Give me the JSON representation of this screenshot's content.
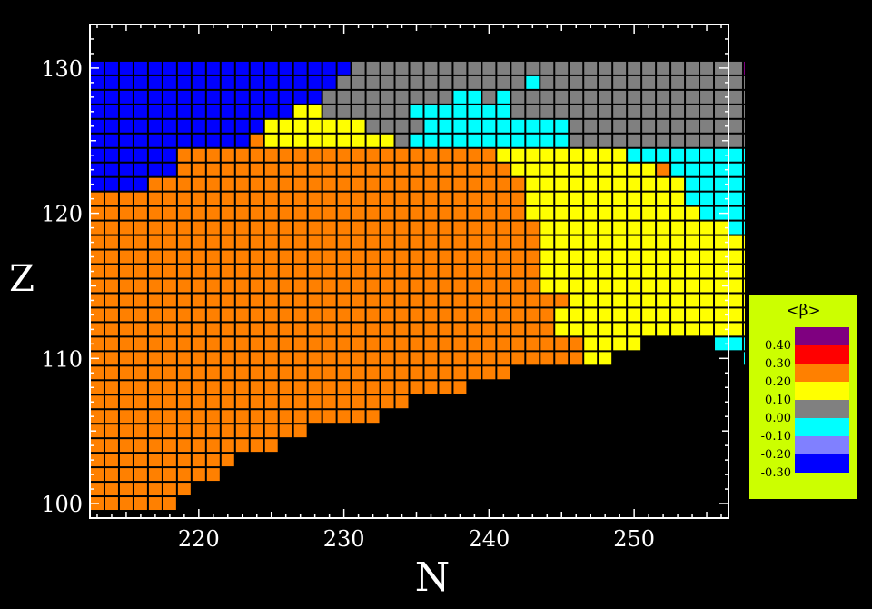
{
  "chart_data": {
    "type": "heatmap",
    "title": "",
    "xlabel": "N",
    "ylabel": "Z",
    "xlim": [
      212.5,
      256.5
    ],
    "ylim": [
      99,
      133
    ],
    "x_ticks": [
      "220",
      "230",
      "240",
      "250"
    ],
    "y_ticks": [
      "100",
      "110",
      "120",
      "130"
    ],
    "value_colors": {
      "0.40": "#7f0080",
      "0.30": "#ff0000",
      "0.20": "#ff8000",
      "0.10": "#ffff00",
      "0.00": "#808080",
      "-0.10": "#00ffff",
      "-0.20": "#8080ff",
      "-0.30": "#0000ff"
    },
    "rows": [
      {
        "z": 100,
        "n_start": 213,
        "vals": "OOOOOO"
      },
      {
        "z": 101,
        "n_start": 213,
        "vals": "OOOOOOO"
      },
      {
        "z": 102,
        "n_start": 213,
        "vals": "OOOOOOOOO"
      },
      {
        "z": 103,
        "n_start": 213,
        "vals": "OOOOOOOOOO"
      },
      {
        "z": 104,
        "n_start": 213,
        "vals": "OOOOOOOOOOOOO"
      },
      {
        "z": 105,
        "n_start": 213,
        "vals": "OOOOOOOOOOOOOOO"
      },
      {
        "z": 106,
        "n_start": 213,
        "vals": "OOOOOOOOOOOOOOOOOOOO"
      },
      {
        "z": 107,
        "n_start": 213,
        "vals": "OOOOOOOOOOOOOOOOOOOOOO"
      },
      {
        "z": 108,
        "n_start": 213,
        "vals": "OOOOOOOOOOOOOOOOOOOOOOOOOO"
      },
      {
        "z": 109,
        "n_start": 213,
        "vals": "OOOOOOOOOOOOOOOOOOOOOOOOOOOOO"
      },
      {
        "z": 110,
        "n_start": 213,
        "vals": "OOOOOOOOOOOOOOOOOOOOOOOOOOOOOOOOOOYY.........CC......GG"
      },
      {
        "z": 111,
        "n_start": 213,
        "vals": "OOOOOOOOOOOOOOOOOOOOOOOOOOOOOOOOOOYYYY.....CCCC....GG"
      },
      {
        "z": 112,
        "n_start": 213,
        "vals": "OOOOOOOOOOOOOOOOOOOOOOOOOOOOOOOOYYYYYYYYYYYYYYYCCCCGGG..GG"
      },
      {
        "z": 113,
        "n_start": 213,
        "vals": "OOOOOOOOOOOOOOOOOOOOOOOOOOOOOOOOYYYYYYYYYYYYYYYYCYCCGGGGGGGG"
      },
      {
        "z": 114,
        "n_start": 213,
        "vals": "OOOOOOOOOOOOOOOOOOOOOOOOOOOOOOOOOYYYYYYYYYYYYYYYYCCCCGGGGGGGGGG"
      },
      {
        "z": 115,
        "n_start": 213,
        "vals": "OOOOOOOOOOOOOOOOOOOOOOOOOOOOOOOYYYYYYYYYYYYYYYYYYYCCCCGGGGGGGGGG"
      },
      {
        "z": 116,
        "n_start": 213,
        "vals": "OOOOOOOOOOOOOOOOOOOOOOOOOOOOOOOYYYYYYYYYYYYYYYYYYYCCCCGGGGGGGGGG"
      },
      {
        "z": 117,
        "n_start": 213,
        "vals": "OOOOOOOOOOOOOOOOOOOOOOOOOOOOOOOYYYYYYYYYYYYYYYYYYYCCCGGGGGGGGGGG"
      },
      {
        "z": 118,
        "n_start": 213,
        "vals": "OOOOOOOOOOOOOOOOOOOOOOOOOOOOOOOYYYYYYYYYYYYYYYYYYYCCCCCCCGGGGGGGGGGGGG"
      },
      {
        "z": 119,
        "n_start": 213,
        "vals": "OOOOOOOOOOOOOOOOOOOOOOOOOOOOOOOYYYYYYYYYYYYYCCCCCCCCCCCCCGGGGGGGGGGGGG"
      },
      {
        "z": 120,
        "n_start": 213,
        "vals": "OOOOOOOOOOOOOOOOOOOOOOOOOOOOOOYYYYYYYYYYYYCCCCCCCCCCCCCCCGGGGGGGGGGGG"
      },
      {
        "z": 121,
        "n_start": 213,
        "vals": "OOOOOOOOOOOOOOOOOOOOOOOOOOOOOOYYYYYYYYYYYCCCCCCCCCCCCCCCGGGGGGGGGGGGG"
      },
      {
        "z": 122,
        "n_start": 213,
        "vals": "BBBBOOOOOOOOOOOOOOOOOOOOOOOOOOYYYYYYYYYYYCCCCCCCCCCCCCCCGGGGGGGGGGGGG"
      },
      {
        "z": 123,
        "n_start": 213,
        "vals": "BBBBBBOOOOOOOOOOOOOOOOOOOOOOOYYYYYYYYYYOCCCCCCCCCCCCCCCGGGGGGGGGGGGGG"
      },
      {
        "z": 124,
        "n_start": 213,
        "vals": "BBBBBBOOOOOOOOOOOOOOOOOOOOOOYYYYYYYYYCCCCCCCCCCCCCCCCCGGGGGGGGGGGGGGGG"
      },
      {
        "z": 125,
        "n_start": 213,
        "vals": "BBBBBBBBBBBOYYYYYYYYYGCCCCCCCCCCCGGGGGGGGGGGGGGGGGGGGGGGGGGGGG"
      },
      {
        "z": 126,
        "n_start": 213,
        "vals": "BBBBBBBBBBBBYYYYYYYGGGGCCCCCCCCCCGGGGGGGGGGGGGGGGGGGGGGGGGGG"
      },
      {
        "z": 127,
        "n_start": 213,
        "vals": "BBBBBBBBBBBBBBYYGGGGGGCCCCCCCGGGGGGGGGGGGGGGGGGGGGGGGGGGG"
      },
      {
        "z": 128,
        "n_start": 213,
        "vals": "BBBBBBBBBBBBBBBBGGGGGGGGGCCGCGGGGGGGGGGGGGGGGGGGGGGGGG"
      },
      {
        "z": 129,
        "n_start": 213,
        "vals": "BBBBBBBBBBBBBBBBBGGGGGGGGGGGGGCGGGGGGGGGGGGGGGGGGGGGGG"
      },
      {
        "z": 130,
        "n_start": 213,
        "vals": "BBBBBBBBBBBBBBBBBBGGGGGGGGGGGGGGGGGGGGGGGGGGGPP"
      }
    ],
    "value_key": {
      "B": "-0.30",
      "C": "-0.10",
      "G": "0.00",
      "Y": "0.10",
      "O": "0.20",
      "P": "0.40",
      ".": "none"
    }
  },
  "legend": {
    "title": "<β>",
    "entries": [
      {
        "label": "0.40",
        "color": "#7f0080"
      },
      {
        "label": "0.30",
        "color": "#ff0000"
      },
      {
        "label": "0.20",
        "color": "#ff8000"
      },
      {
        "label": "0.10",
        "color": "#ffff00"
      },
      {
        "label": "0.00",
        "color": "#808080"
      },
      {
        "label": "-0.10",
        "color": "#00ffff"
      },
      {
        "label": "-0.20",
        "color": "#8080ff"
      },
      {
        "label": "-0.30",
        "color": "#0000ff"
      }
    ]
  }
}
